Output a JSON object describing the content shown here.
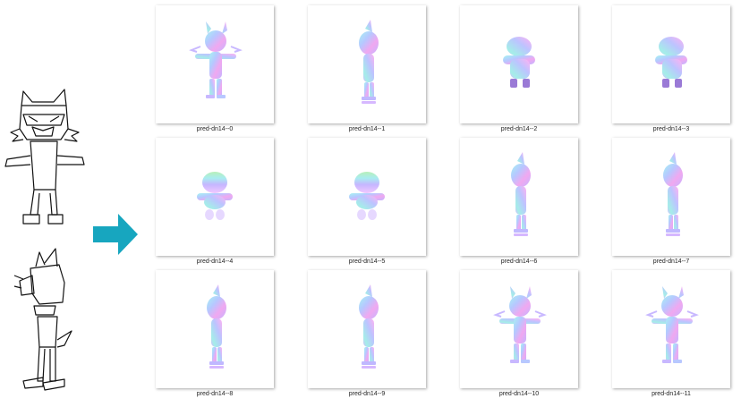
{
  "arrow_color": "#17a6bf",
  "thumbnails": [
    {
      "label": "pred-dn14--0",
      "pose": "front-tpose"
    },
    {
      "label": "pred-dn14--1",
      "pose": "side"
    },
    {
      "label": "pred-dn14--2",
      "pose": "back-crouch"
    },
    {
      "label": "pred-dn14--3",
      "pose": "back-crouch"
    },
    {
      "label": "pred-dn14--4",
      "pose": "top"
    },
    {
      "label": "pred-dn14--5",
      "pose": "top"
    },
    {
      "label": "pred-dn14--6",
      "pose": "side"
    },
    {
      "label": "pred-dn14--7",
      "pose": "side"
    },
    {
      "label": "pred-dn14--8",
      "pose": "side"
    },
    {
      "label": "pred-dn14--9",
      "pose": "side"
    },
    {
      "label": "pred-dn14--10",
      "pose": "front-tpose"
    },
    {
      "label": "pred-dn14--11",
      "pose": "front-tpose"
    }
  ]
}
